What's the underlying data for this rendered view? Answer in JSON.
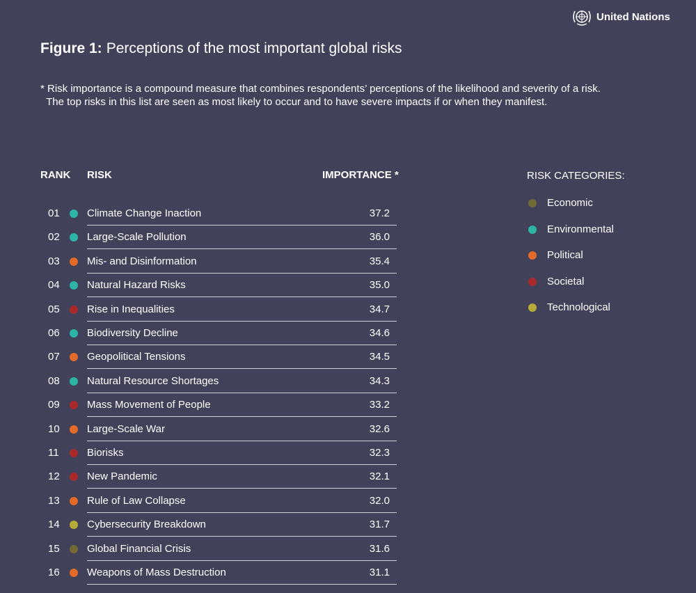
{
  "header": {
    "org_name": "United Nations",
    "logo_icon": "un-emblem-icon"
  },
  "title": {
    "prefix": "Figure 1:",
    "text": "Perceptions of the most important global risks"
  },
  "note": "* Risk importance is a compound measure that combines respondents’ perceptions of the likelihood and severity of a risk.\n  The top risks in this list are seen as most likely to occur and to have severe impacts if or when they manifest.",
  "legend": {
    "title": "RISK CATEGORIES:",
    "items": [
      {
        "label": "Economic",
        "color": "#716a34"
      },
      {
        "label": "Environmental",
        "color": "#2cb5a5"
      },
      {
        "label": "Political",
        "color": "#e46a29"
      },
      {
        "label": "Societal",
        "color": "#a8282b"
      },
      {
        "label": "Technological",
        "color": "#b5ab36"
      }
    ]
  },
  "chart_data": {
    "type": "table",
    "columns": [
      "RANK",
      "RISK",
      "IMPORTANCE *"
    ],
    "rows": [
      {
        "rank": "01",
        "risk": "Climate Change Inaction",
        "category": "Environmental",
        "importance": "37.2"
      },
      {
        "rank": "02",
        "risk": "Large-Scale Pollution",
        "category": "Environmental",
        "importance": "36.0"
      },
      {
        "rank": "03",
        "risk": "Mis- and Disinformation",
        "category": "Political",
        "importance": "35.4"
      },
      {
        "rank": "04",
        "risk": "Natural Hazard Risks",
        "category": "Environmental",
        "importance": "35.0"
      },
      {
        "rank": "05",
        "risk": "Rise in Inequalities",
        "category": "Societal",
        "importance": "34.7"
      },
      {
        "rank": "06",
        "risk": "Biodiversity Decline",
        "category": "Environmental",
        "importance": "34.6"
      },
      {
        "rank": "07",
        "risk": "Geopolitical Tensions",
        "category": "Political",
        "importance": "34.5"
      },
      {
        "rank": "08",
        "risk": "Natural Resource Shortages",
        "category": "Environmental",
        "importance": "34.3"
      },
      {
        "rank": "09",
        "risk": "Mass Movement of People",
        "category": "Societal",
        "importance": "33.2"
      },
      {
        "rank": "10",
        "risk": "Large-Scale War",
        "category": "Political",
        "importance": "32.6"
      },
      {
        "rank": "11",
        "risk": "Biorisks",
        "category": "Societal",
        "importance": "32.3"
      },
      {
        "rank": "12",
        "risk": "New Pandemic",
        "category": "Societal",
        "importance": "32.1"
      },
      {
        "rank": "13",
        "risk": "Rule of Law Collapse",
        "category": "Political",
        "importance": "32.0"
      },
      {
        "rank": "14",
        "risk": "Cybersecurity Breakdown",
        "category": "Technological",
        "importance": "31.7"
      },
      {
        "rank": "15",
        "risk": "Global Financial Crisis",
        "category": "Economic",
        "importance": "31.6"
      },
      {
        "rank": "16",
        "risk": "Weapons of Mass Destruction",
        "category": "Political",
        "importance": "31.1"
      }
    ]
  }
}
